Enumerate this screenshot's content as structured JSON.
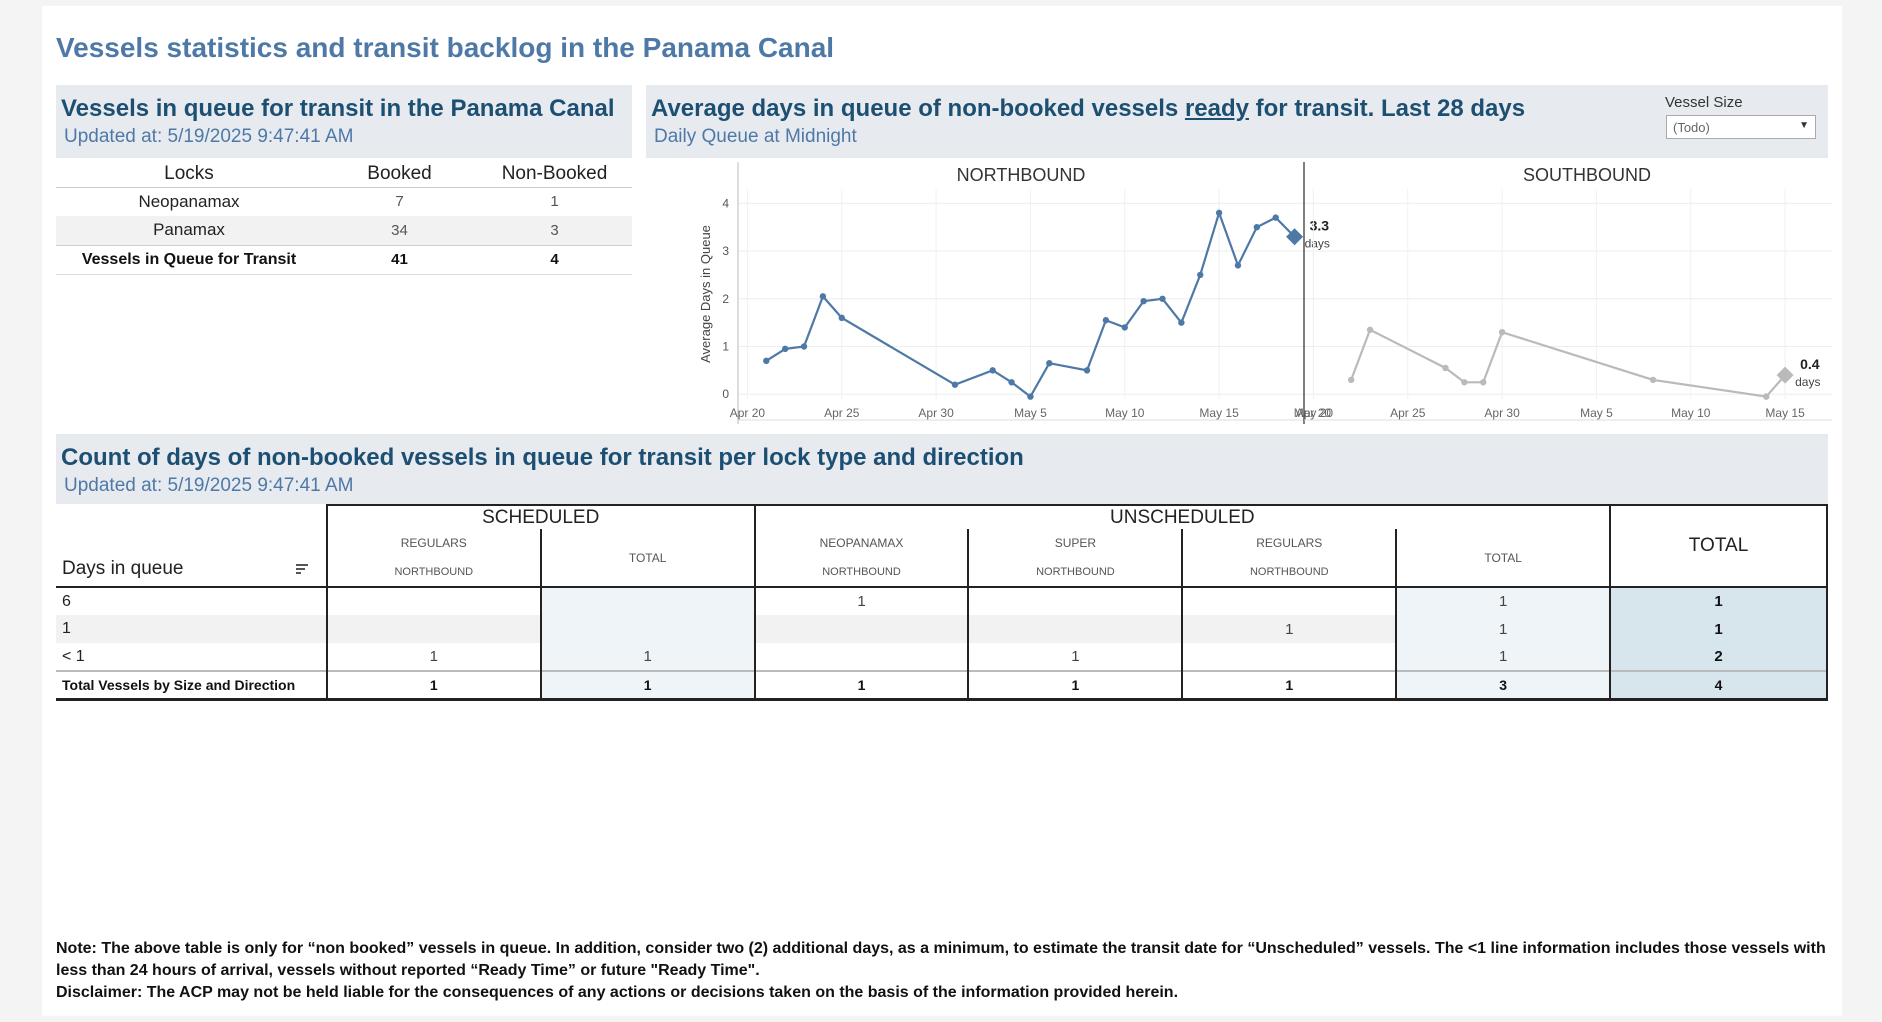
{
  "page_title": "Vessels statistics and transit backlog in the Panama Canal",
  "queue_panel": {
    "title": "Vessels in queue for transit in the Panama Canal",
    "updated": "Updated at:  5/19/2025 9:47:41 AM",
    "columns": [
      "Locks",
      "Booked",
      "Non-Booked"
    ],
    "rows": [
      {
        "lock": "Neopanamax",
        "booked": "7",
        "non_booked": "1"
      },
      {
        "lock": "Panamax",
        "booked": "34",
        "non_booked": "3"
      }
    ],
    "total": {
      "lock": "Vessels in Queue for Transit",
      "booked": "41",
      "non_booked": "4"
    }
  },
  "avg_panel": {
    "title_pre": "Average days in queue of non-booked vessels ",
    "title_ready": "ready",
    "title_post": " for transit. Last 28 days",
    "subtitle": "Daily Queue at Midnight",
    "filter_label": "Vessel Size",
    "filter_value": "(Todo)"
  },
  "chart_data": {
    "type": "line",
    "ylabel": "Average Days in Queue",
    "ylim": [
      -0.1,
      4.3
    ],
    "yticks": [
      0,
      1,
      2,
      3,
      4
    ],
    "xlim": [
      -0.5,
      29.5
    ],
    "xticks": [
      {
        "day": 0,
        "label": "Apr 20"
      },
      {
        "day": 5,
        "label": "Apr 25"
      },
      {
        "day": 10,
        "label": "Apr 30"
      },
      {
        "day": 15,
        "label": "May 5"
      },
      {
        "day": 20,
        "label": "May 10"
      },
      {
        "day": 25,
        "label": "May 15"
      },
      {
        "day": 30,
        "label": "May 20"
      }
    ],
    "panels": [
      {
        "name": "NORTHBOUND",
        "color": "#4e79a7",
        "points": [
          [
            1,
            0.7
          ],
          [
            2,
            0.95
          ],
          [
            3,
            1.0
          ],
          [
            4,
            2.05
          ],
          [
            5,
            1.6
          ],
          [
            11,
            0.2
          ],
          [
            13,
            0.5
          ],
          [
            14,
            0.25
          ],
          [
            15,
            -0.05
          ],
          [
            16,
            0.65
          ],
          [
            18,
            0.5
          ],
          [
            19,
            1.55
          ],
          [
            20,
            1.4
          ],
          [
            21,
            1.95
          ],
          [
            22,
            2.0
          ],
          [
            23,
            1.5
          ],
          [
            24,
            2.5
          ],
          [
            25,
            3.8
          ],
          [
            26,
            2.7
          ],
          [
            27,
            3.5
          ],
          [
            28,
            3.7
          ],
          [
            29,
            3.3
          ]
        ],
        "last_value": "3.3",
        "last_unit": "days"
      },
      {
        "name": "SOUTHBOUND",
        "color": "#bababa",
        "points": [
          [
            2,
            0.3
          ],
          [
            3,
            1.35
          ],
          [
            7,
            0.55
          ],
          [
            8,
            0.25
          ],
          [
            9,
            0.25
          ],
          [
            10,
            1.3
          ],
          [
            18,
            0.3
          ],
          [
            24,
            -0.05
          ],
          [
            25,
            0.4
          ]
        ],
        "last_value": "0.4",
        "last_unit": "days"
      }
    ]
  },
  "count_panel": {
    "title": "Count of days of non-booked vessels in queue for transit per lock type and direction",
    "updated": "Updated at:  5/19/2025 9:47:41 AM",
    "row_header": "Days in queue",
    "group_scheduled": "SCHEDULED",
    "group_unscheduled": "UNSCHEDULED",
    "total_header": "TOTAL",
    "sub_regulars": "REGULARS",
    "sub_total": "TOTAL",
    "sub_neopanamax": "NEOPANAMAX",
    "sub_super": "SUPER",
    "dir_northbound": "NORTHBOUND",
    "rows": [
      {
        "label": "6",
        "c": [
          "",
          "",
          "1",
          "",
          "",
          "1",
          "1"
        ]
      },
      {
        "label": "1",
        "c": [
          "",
          "",
          "",
          "",
          "1",
          "1",
          "1"
        ]
      },
      {
        "label": "< 1",
        "c": [
          "1",
          "1",
          "",
          "1",
          "",
          "1",
          "2"
        ]
      }
    ],
    "total_row": {
      "label": "Total Vessels by Size and Direction",
      "c": [
        "1",
        "1",
        "1",
        "1",
        "1",
        "3",
        "4"
      ]
    }
  },
  "note": {
    "line1": "Note:  The above table is only for “non booked” vessels in queue. In addition, consider two (2) additional days, as a minimum, to estimate the transit date for “Unscheduled” vessels.  The <1 line information includes those vessels with less than 24 hours of arrival, vessels without reported “Ready Time” or future \"Ready Time\".",
    "line2": "Disclaimer: The ACP may not be held liable for the consequences of any actions or decisions taken on the basis of the information provided herein."
  }
}
